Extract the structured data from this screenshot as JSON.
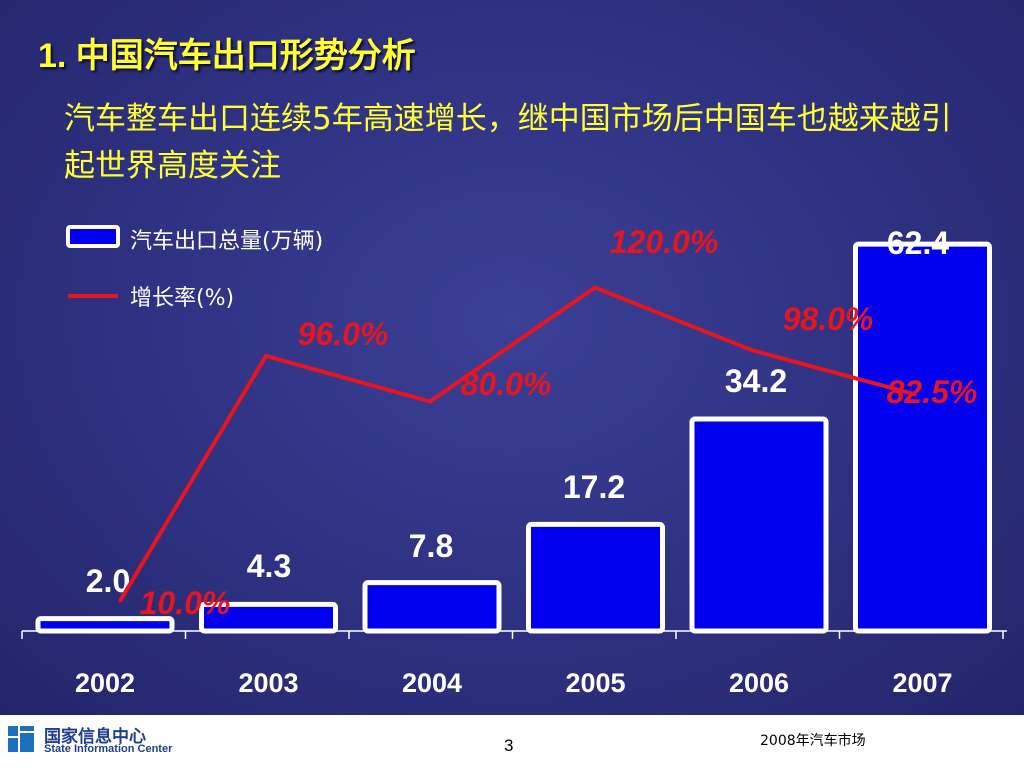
{
  "slide": {
    "title": "1. 中国汽车出口形势分析",
    "subtitle": "汽车整车出口连续5年高速增长，继中国市场后中国车也越来越引起世界高度关注"
  },
  "chart_data": {
    "type": "bar",
    "categories": [
      "2002",
      "2003",
      "2004",
      "2005",
      "2006",
      "2007"
    ],
    "series": [
      {
        "name": "汽车出口总量(万辆)",
        "type": "bar",
        "values": [
          2.0,
          4.3,
          7.8,
          17.2,
          34.2,
          62.4
        ],
        "labels": [
          "2.0",
          "4.3",
          "7.8",
          "17.2",
          "34.2",
          "62.4"
        ],
        "color": "#0000ee"
      },
      {
        "name": "增长率(%)",
        "type": "line",
        "values": [
          10.0,
          96.0,
          80.0,
          120.0,
          98.0,
          82.5
        ],
        "labels": [
          "10.0%",
          "96.0%",
          "80.0%",
          "120.0%",
          "98.0%",
          "82.5%"
        ],
        "color": "#e8141e"
      }
    ],
    "legend_position": "top-left",
    "grid": false
  },
  "footer": {
    "org_cn": "国家信息中心",
    "org_en": "State Information Center",
    "page": "3",
    "right_text": "2008年汽车市场"
  },
  "colors": {
    "accent_yellow": "#ffff33",
    "bar_fill": "#0000ee",
    "line_red": "#e8141e",
    "logo_blue": "#1f3f8f"
  }
}
